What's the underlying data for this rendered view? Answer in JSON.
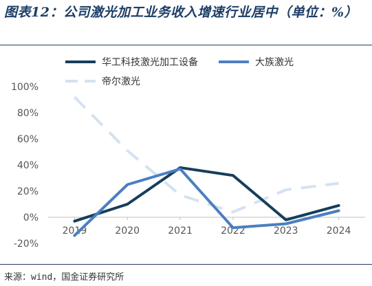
{
  "title": "图表12：公司激光加工业务收入增速行业居中（单位：%）",
  "source": "来源：wind，国金证券研究所",
  "chart_data": {
    "type": "line",
    "categories": [
      "2019",
      "2020",
      "2021",
      "2022",
      "2023",
      "2024"
    ],
    "series": [
      {
        "name": "华工科技激光加工设备",
        "values": [
          -3,
          10,
          38,
          32,
          -2,
          9
        ],
        "color": "#163e5c",
        "style": "solid"
      },
      {
        "name": "大族激光",
        "values": [
          -14,
          25,
          37,
          -8,
          -5,
          5
        ],
        "color": "#4a7fc1",
        "style": "solid"
      },
      {
        "name": "帝尔激光",
        "values": [
          92,
          51,
          17,
          4,
          21,
          26
        ],
        "color": "#d4e2f0",
        "style": "dashed"
      }
    ],
    "ylim": [
      -20,
      100
    ],
    "yticks": [
      -20,
      0,
      20,
      40,
      60,
      80,
      100
    ],
    "ytick_labels": [
      "-20%",
      "0%",
      "20%",
      "40%",
      "60%",
      "80%",
      "100%"
    ],
    "xlabel": "",
    "ylabel": "",
    "legend_position": "top",
    "grid": false
  }
}
